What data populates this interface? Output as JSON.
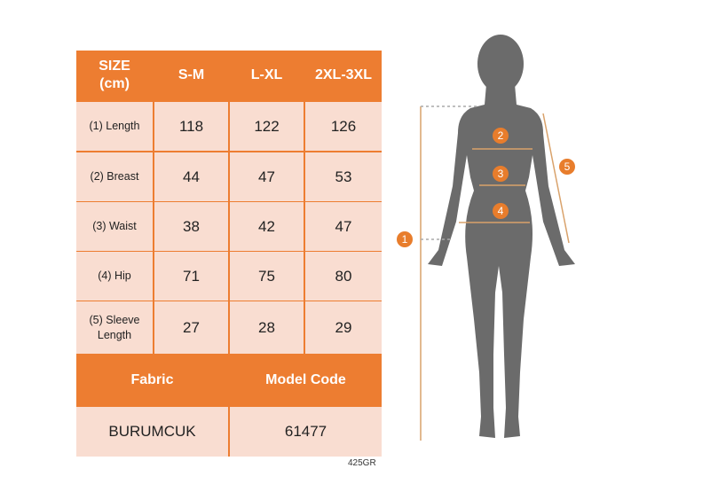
{
  "table": {
    "header": [
      "SIZE\n(cm)",
      "S-M",
      "L-XL",
      "2XL-3XL"
    ],
    "rows": [
      {
        "label": "(1) Length",
        "values": [
          "118",
          "122",
          "126"
        ]
      },
      {
        "label": "(2) Breast",
        "values": [
          "44",
          "47",
          "53"
        ]
      },
      {
        "label": "(3) Waist",
        "values": [
          "38",
          "42",
          "47"
        ]
      },
      {
        "label": "(4) Hip",
        "values": [
          "71",
          "75",
          "80"
        ]
      },
      {
        "label": "(5) Sleeve\nLength",
        "values": [
          "27",
          "28",
          "29"
        ]
      }
    ],
    "footer_headers": [
      "Fabric",
      "Model Code"
    ],
    "footer_values": [
      "BURUMCUK",
      "61477"
    ]
  },
  "product_code": "425GR",
  "figure": {
    "markers": [
      "1",
      "2",
      "3",
      "4",
      "5"
    ]
  },
  "colors": {
    "accent": "#ED7D31",
    "cell": "#F9DDD1",
    "silhouette": "#6B6B6B"
  }
}
